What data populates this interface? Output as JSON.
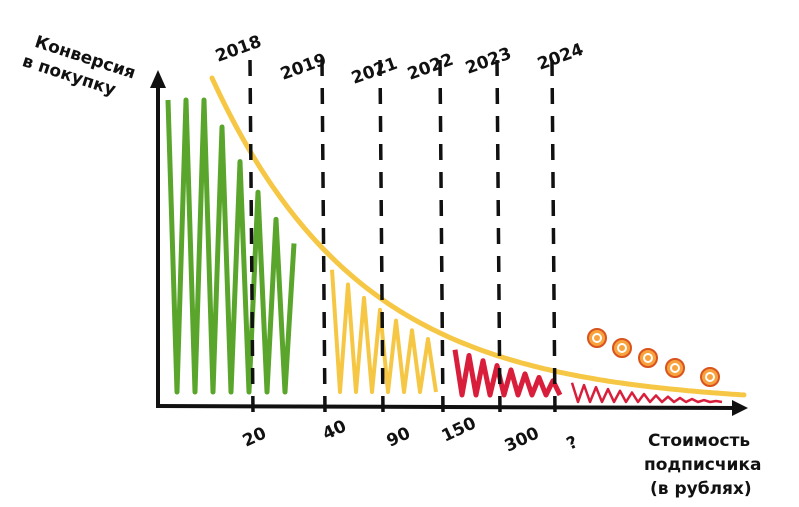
{
  "y_axis_label": [
    "Конверсия",
    "в покупку"
  ],
  "x_axis_label": [
    "Стоимость",
    "подписчика",
    "(в рублях)"
  ],
  "years": [
    "2018",
    "2019",
    "2021",
    "2022",
    "2023",
    "2024"
  ],
  "prices": [
    "20",
    "40",
    "90",
    "150",
    "300",
    "?"
  ]
}
